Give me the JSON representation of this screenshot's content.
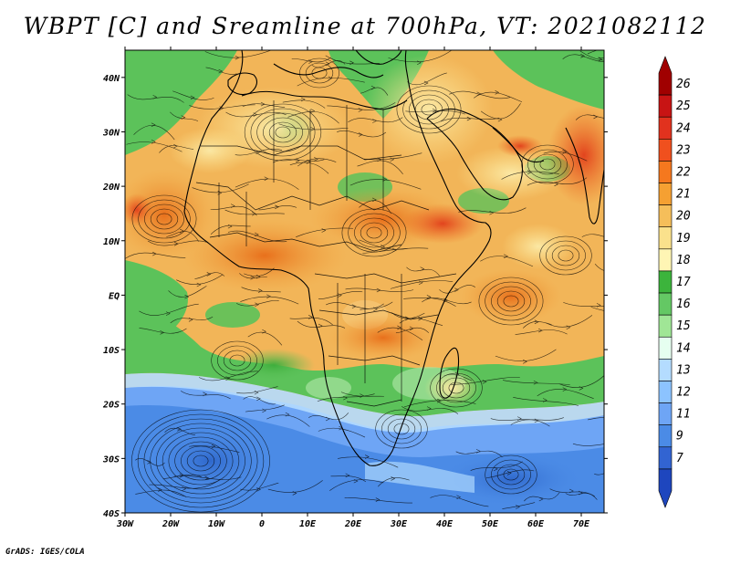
{
  "title": "WBPT [C] and Sreamline at 700hPa, VT: 2021082112",
  "credit": "GrADS: IGES/COLA",
  "map": {
    "lon_range": [
      -30,
      75
    ],
    "lat_range": [
      -40,
      45
    ],
    "lat_ticks": [
      {
        "value": 40,
        "label": "40N"
      },
      {
        "value": 30,
        "label": "30N"
      },
      {
        "value": 20,
        "label": "20N"
      },
      {
        "value": 10,
        "label": "10N"
      },
      {
        "value": 0,
        "label": "EQ"
      },
      {
        "value": -10,
        "label": "10S"
      },
      {
        "value": -20,
        "label": "20S"
      },
      {
        "value": -30,
        "label": "30S"
      },
      {
        "value": -40,
        "label": "40S"
      }
    ],
    "lon_ticks": [
      {
        "value": -30,
        "label": "30W"
      },
      {
        "value": -20,
        "label": "20W"
      },
      {
        "value": -10,
        "label": "10W"
      },
      {
        "value": 0,
        "label": "0"
      },
      {
        "value": 10,
        "label": "10E"
      },
      {
        "value": 20,
        "label": "20E"
      },
      {
        "value": 30,
        "label": "30E"
      },
      {
        "value": 40,
        "label": "40E"
      },
      {
        "value": 50,
        "label": "50E"
      },
      {
        "value": 60,
        "label": "60E"
      },
      {
        "value": 70,
        "label": "70E"
      }
    ]
  },
  "colorbar": {
    "labels": [
      "26",
      "25",
      "24",
      "23",
      "22",
      "21",
      "20",
      "19",
      "18",
      "17",
      "16",
      "15",
      "14",
      "13",
      "12",
      "11",
      "9",
      "7"
    ],
    "colors": [
      "#a00000",
      "#c81414",
      "#e1321e",
      "#f0501e",
      "#f5781e",
      "#f5a032",
      "#f5be5a",
      "#fae18c",
      "#fff5b4",
      "#3cb43c",
      "#64c864",
      "#a0e696",
      "#e6fff0",
      "#b4dcff",
      "#8cc3ff",
      "#6ea5f5",
      "#4b8be6",
      "#3264d2",
      "#1e46be"
    ]
  }
}
